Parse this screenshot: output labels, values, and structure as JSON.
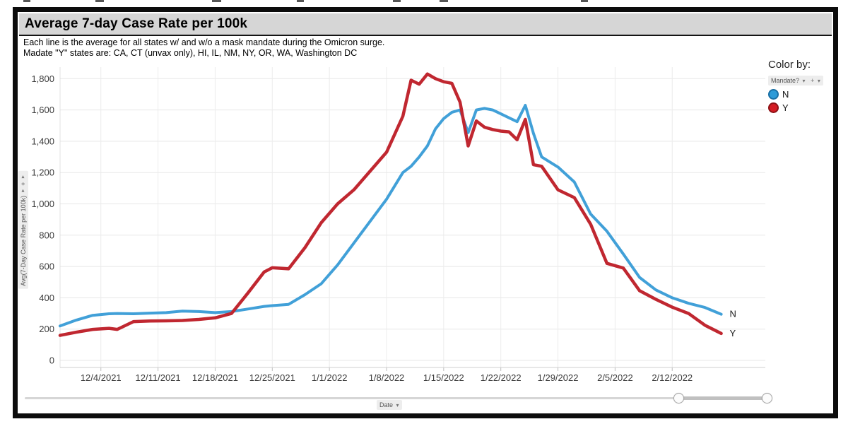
{
  "window": {
    "title_bar": "Average 7-day Case Rate per 100k",
    "subtitle1": "Each line is the average for all states w/ and w/o a mask mandate during the Omicron surge.",
    "subtitle2": "Madate \"Y\" states are: CA, CT (unvax only), HI, IL, NM, NY, OR, WA, Washington DC"
  },
  "legend": {
    "heading": "Color by:",
    "field": "Mandate?",
    "caret": "▾",
    "plus": "+",
    "items": [
      {
        "label": "N",
        "color": "#2d9bd8",
        "ring": "#1a6fa4"
      },
      {
        "label": "Y",
        "color": "#d41b23",
        "ring": "#8c1216"
      }
    ]
  },
  "axes": {
    "y_field": "Avg(7-Day Case Rate per 100k)",
    "x_field": "Date",
    "caret": "▾",
    "plus": "+"
  },
  "chart_data": {
    "type": "line",
    "title": "Average 7-day Case Rate per 100k",
    "xlabel": "Date",
    "ylabel": "Avg(7-Day Case Rate per 100k)",
    "grid": true,
    "legend_position": "right",
    "ylim": [
      0,
      1870
    ],
    "y_ticks": [
      0,
      200,
      400,
      600,
      800,
      1000,
      1200,
      1400,
      1600,
      1800
    ],
    "x_ticks": [
      "12/4/2021",
      "12/11/2021",
      "12/18/2021",
      "12/25/2021",
      "1/1/2022",
      "1/8/2022",
      "1/15/2022",
      "1/22/2022",
      "1/29/2022",
      "2/5/2022",
      "2/12/2022"
    ],
    "x": [
      "11/29/2021",
      "12/1/2021",
      "12/3/2021",
      "12/5/2021",
      "12/6/2021",
      "12/8/2021",
      "12/10/2021",
      "12/12/2021",
      "12/14/2021",
      "12/16/2021",
      "12/18/2021",
      "12/20/2021",
      "12/22/2021",
      "12/24/2021",
      "12/25/2021",
      "12/27/2021",
      "12/29/2021",
      "12/31/2021",
      "1/2/2022",
      "1/4/2022",
      "1/6/2022",
      "1/8/2022",
      "1/10/2022",
      "1/11/2022",
      "1/12/2022",
      "1/13/2022",
      "1/14/2022",
      "1/15/2022",
      "1/16/2022",
      "1/17/2022",
      "1/18/2022",
      "1/19/2022",
      "1/20/2022",
      "1/21/2022",
      "1/22/2022",
      "1/23/2022",
      "1/24/2022",
      "1/25/2022",
      "1/26/2022",
      "1/27/2022",
      "1/29/2022",
      "1/31/2022",
      "2/2/2022",
      "2/4/2022",
      "2/6/2022",
      "2/8/2022",
      "2/10/2022",
      "2/12/2022",
      "2/14/2022",
      "2/16/2022",
      "2/18/2022"
    ],
    "series": [
      {
        "name": "N",
        "color": "#41a0d8",
        "values": [
          220,
          258,
          288,
          298,
          300,
          298,
          302,
          305,
          315,
          312,
          305,
          312,
          328,
          345,
          350,
          358,
          420,
          490,
          610,
          750,
          890,
          1030,
          1200,
          1240,
          1300,
          1370,
          1480,
          1545,
          1585,
          1600,
          1455,
          1600,
          1610,
          1600,
          1575,
          1550,
          1525,
          1630,
          1450,
          1300,
          1235,
          1140,
          935,
          825,
          680,
          530,
          450,
          400,
          365,
          338,
          295
        ]
      },
      {
        "name": "Y",
        "color": "#c02730",
        "values": [
          160,
          180,
          198,
          205,
          198,
          248,
          252,
          253,
          255,
          262,
          272,
          300,
          430,
          565,
          592,
          585,
          720,
          880,
          1000,
          1090,
          1210,
          1330,
          1560,
          1790,
          1765,
          1830,
          1800,
          1780,
          1770,
          1650,
          1370,
          1530,
          1490,
          1475,
          1465,
          1460,
          1410,
          1540,
          1250,
          1240,
          1090,
          1040,
          870,
          620,
          590,
          445,
          390,
          340,
          300,
          225,
          172
        ]
      }
    ]
  }
}
